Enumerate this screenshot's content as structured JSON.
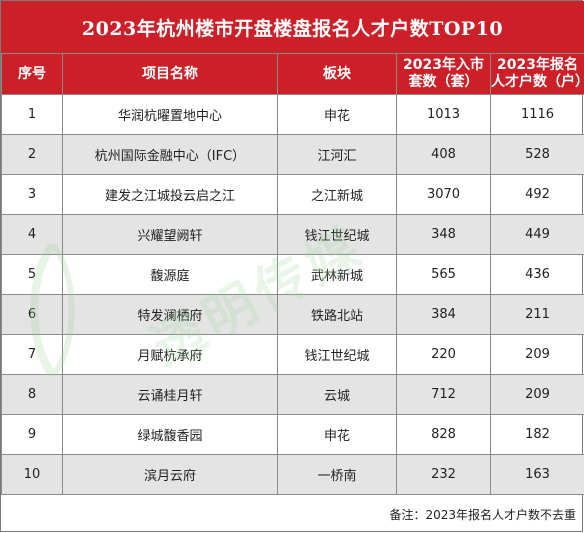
{
  "title": "2023年杭州楼市开盘楼盘报名人才户数TOP10",
  "columns": [
    "序号",
    "项目名称",
    "板块",
    "2023年入市套数（套）",
    "2023年报名人才户数（户）"
  ],
  "rows": [
    {
      "no": "1",
      "name": "华润杭曜置地中心",
      "area": "申花",
      "units": "1013",
      "registrants": "1116"
    },
    {
      "no": "2",
      "name": "杭州国际金融中心（IFC）",
      "area": "江河汇",
      "units": "408",
      "registrants": "528"
    },
    {
      "no": "3",
      "name": "建发之江城投云启之江",
      "area": "之江新城",
      "units": "3070",
      "registrants": "492"
    },
    {
      "no": "4",
      "name": "兴耀望阙轩",
      "area": "钱江世纪城",
      "units": "348",
      "registrants": "449"
    },
    {
      "no": "5",
      "name": "馥源庭",
      "area": "武林新城",
      "units": "565",
      "registrants": "436"
    },
    {
      "no": "6",
      "name": "特发澜栖府",
      "area": "铁路北站",
      "units": "384",
      "registrants": "211"
    },
    {
      "no": "7",
      "name": "月赋杭承府",
      "area": "钱江世纪城",
      "units": "220",
      "registrants": "209"
    },
    {
      "no": "8",
      "name": "云诵桂月轩",
      "area": "云城",
      "units": "712",
      "registrants": "209"
    },
    {
      "no": "9",
      "name": "绿城馥香园",
      "area": "申花",
      "units": "828",
      "registrants": "182"
    },
    {
      "no": "10",
      "name": "滨月云府",
      "area": "一桥南",
      "units": "232",
      "registrants": "163"
    }
  ],
  "footnote": "备注：2023年报名人才户数不去重",
  "watermark": "透明传媒",
  "colors": {
    "header_red": "#cc1f27",
    "shaded_row": "#e4e4e4",
    "watermark_green": "#9fd39a"
  }
}
